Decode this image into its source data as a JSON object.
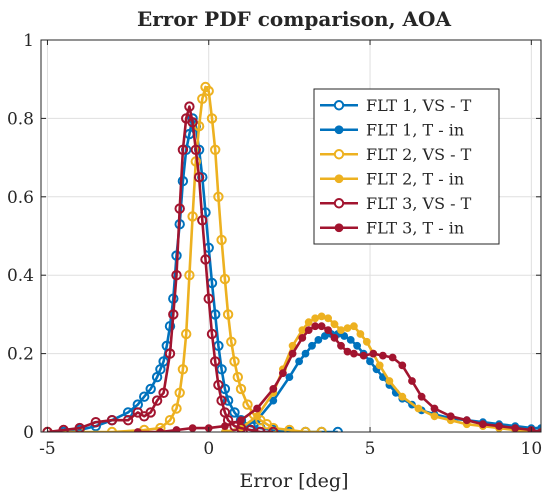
{
  "chart_data": {
    "type": "line",
    "title": "Error PDF comparison, AOA",
    "xlabel": "Error [deg]",
    "ylabel": "",
    "xlim": [
      -5.2,
      10.3
    ],
    "ylim": [
      0,
      1
    ],
    "xticks": [
      -5,
      0,
      5,
      10
    ],
    "yticks": [
      0,
      0.2,
      0.4,
      0.6,
      0.8,
      1
    ],
    "xtick_labels": [
      "-5",
      "0",
      "5",
      "10"
    ],
    "ytick_labels": [
      "0",
      "0.2",
      "0.4",
      "0.6",
      "0.8",
      "1"
    ],
    "grid": true,
    "legend_position": "top-right",
    "series": [
      {
        "name": "FLT 1, VS - T",
        "color": "#0072BD",
        "marker": "open-circle",
        "x": [
          -5.0,
          -4.5,
          -4.0,
          -3.5,
          -3.0,
          -2.5,
          -2.2,
          -2.0,
          -1.8,
          -1.6,
          -1.5,
          -1.4,
          -1.3,
          -1.2,
          -1.1,
          -1.0,
          -0.9,
          -0.8,
          -0.7,
          -0.6,
          -0.5,
          -0.4,
          -0.3,
          -0.2,
          -0.1,
          0.0,
          0.1,
          0.2,
          0.3,
          0.4,
          0.5,
          0.6,
          0.8,
          1.0,
          1.3,
          1.6,
          2.0,
          2.5,
          3.0,
          3.5,
          4.0
        ],
        "values": [
          0.0,
          0.0,
          0.005,
          0.015,
          0.03,
          0.05,
          0.07,
          0.09,
          0.11,
          0.14,
          0.16,
          0.18,
          0.22,
          0.27,
          0.34,
          0.45,
          0.53,
          0.64,
          0.72,
          0.76,
          0.8,
          0.78,
          0.72,
          0.65,
          0.56,
          0.47,
          0.38,
          0.3,
          0.22,
          0.16,
          0.11,
          0.08,
          0.05,
          0.03,
          0.015,
          0.01,
          0.005,
          0.0,
          0.0,
          0.0,
          0.0
        ]
      },
      {
        "name": "FLT 1, T - in",
        "color": "#0072BD",
        "marker": "filled-circle",
        "x": [
          0.5,
          1.0,
          1.5,
          2.0,
          2.5,
          2.8,
          3.0,
          3.2,
          3.4,
          3.6,
          3.8,
          4.0,
          4.2,
          4.4,
          4.6,
          4.8,
          5.0,
          5.2,
          5.4,
          5.6,
          5.8,
          6.0,
          6.3,
          6.6,
          7.0,
          7.5,
          8.0,
          8.5,
          9.0,
          9.5,
          10.0,
          10.3
        ],
        "values": [
          0.0,
          0.01,
          0.03,
          0.08,
          0.14,
          0.18,
          0.2,
          0.22,
          0.235,
          0.245,
          0.25,
          0.25,
          0.245,
          0.235,
          0.22,
          0.2,
          0.18,
          0.16,
          0.14,
          0.12,
          0.1,
          0.085,
          0.07,
          0.055,
          0.045,
          0.035,
          0.03,
          0.025,
          0.02,
          0.015,
          0.01,
          0.01
        ]
      },
      {
        "name": "FLT 2, VS - T",
        "color": "#EDB120",
        "marker": "open-circle",
        "x": [
          -5.0,
          -4.0,
          -3.0,
          -2.0,
          -1.5,
          -1.2,
          -1.0,
          -0.9,
          -0.8,
          -0.7,
          -0.6,
          -0.5,
          -0.4,
          -0.3,
          -0.2,
          -0.1,
          0.0,
          0.1,
          0.2,
          0.3,
          0.4,
          0.5,
          0.6,
          0.7,
          0.8,
          0.9,
          1.0,
          1.2,
          1.4,
          1.6,
          1.8,
          2.0,
          2.5,
          3.0,
          3.5
        ],
        "values": [
          0.0,
          0.0,
          0.0,
          0.005,
          0.01,
          0.03,
          0.06,
          0.1,
          0.16,
          0.25,
          0.4,
          0.55,
          0.69,
          0.78,
          0.85,
          0.88,
          0.87,
          0.8,
          0.72,
          0.6,
          0.49,
          0.39,
          0.3,
          0.23,
          0.18,
          0.14,
          0.11,
          0.07,
          0.045,
          0.03,
          0.02,
          0.01,
          0.005,
          0.0,
          0.0
        ]
      },
      {
        "name": "FLT 2, T - in",
        "color": "#EDB120",
        "marker": "filled-circle",
        "x": [
          0.5,
          1.0,
          1.5,
          2.0,
          2.3,
          2.6,
          2.9,
          3.1,
          3.3,
          3.5,
          3.7,
          3.9,
          4.1,
          4.3,
          4.5,
          4.7,
          4.9,
          5.1,
          5.3,
          5.6,
          6.0,
          6.5,
          7.0,
          7.5,
          8.0,
          8.5,
          9.0,
          9.5,
          10.0,
          10.3
        ],
        "values": [
          0.0,
          0.01,
          0.04,
          0.1,
          0.16,
          0.22,
          0.26,
          0.28,
          0.29,
          0.295,
          0.29,
          0.275,
          0.26,
          0.265,
          0.27,
          0.25,
          0.23,
          0.2,
          0.17,
          0.13,
          0.09,
          0.06,
          0.04,
          0.03,
          0.02,
          0.015,
          0.01,
          0.005,
          0.0,
          0.0
        ]
      },
      {
        "name": "FLT 3, VS - T",
        "color": "#A2142F",
        "marker": "open-circle",
        "x": [
          -5.0,
          -4.5,
          -4.0,
          -3.5,
          -3.0,
          -2.5,
          -2.2,
          -2.0,
          -1.8,
          -1.6,
          -1.4,
          -1.2,
          -1.1,
          -1.0,
          -0.9,
          -0.8,
          -0.7,
          -0.6,
          -0.5,
          -0.4,
          -0.3,
          -0.2,
          -0.1,
          0.0,
          0.1,
          0.2,
          0.3,
          0.4,
          0.5,
          0.6,
          0.8,
          1.0,
          1.3,
          1.6,
          2.0
        ],
        "values": [
          0.0,
          0.005,
          0.01,
          0.025,
          0.03,
          0.03,
          0.05,
          0.04,
          0.05,
          0.08,
          0.1,
          0.2,
          0.3,
          0.4,
          0.57,
          0.72,
          0.8,
          0.83,
          0.79,
          0.72,
          0.65,
          0.54,
          0.44,
          0.34,
          0.25,
          0.18,
          0.12,
          0.08,
          0.05,
          0.03,
          0.015,
          0.01,
          0.005,
          0.0,
          0.0
        ]
      },
      {
        "name": "FLT 3, T - in",
        "color": "#A2142F",
        "marker": "filled-circle",
        "x": [
          -2.2,
          -1.5,
          -1.0,
          -0.5,
          0.0,
          0.5,
          1.0,
          1.5,
          2.0,
          2.3,
          2.6,
          2.9,
          3.1,
          3.3,
          3.5,
          3.7,
          3.9,
          4.1,
          4.3,
          4.5,
          4.8,
          5.1,
          5.4,
          5.7,
          6.0,
          6.3,
          6.6,
          7.0,
          7.5,
          8.0,
          8.5,
          9.0,
          9.5,
          10.0,
          10.3
        ],
        "values": [
          0.0,
          0.0,
          0.005,
          0.01,
          0.01,
          0.015,
          0.03,
          0.06,
          0.11,
          0.15,
          0.2,
          0.24,
          0.26,
          0.27,
          0.27,
          0.26,
          0.24,
          0.22,
          0.205,
          0.2,
          0.195,
          0.2,
          0.195,
          0.19,
          0.17,
          0.13,
          0.09,
          0.06,
          0.04,
          0.03,
          0.02,
          0.015,
          0.01,
          0.005,
          0.0
        ]
      }
    ]
  }
}
